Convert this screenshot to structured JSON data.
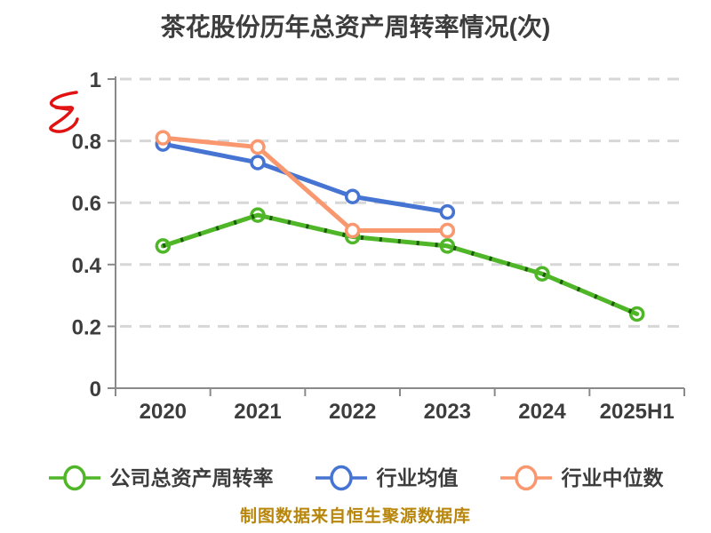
{
  "title": "茶花股份历年总资产周转率情况(次)",
  "watermark": "红色水印字符",
  "footer": {
    "source_note": "制图数据来自恒生聚源数据库"
  },
  "colors": {
    "title_text": "#3d3d3d",
    "tick_text": "#3d3d3d",
    "axis": "#8a8a8a",
    "gridline": "#d7d7d7",
    "company_green": "#4fb628",
    "company_green_dark": "#1c5c08",
    "industry_blue": "#4674d2",
    "median_orange": "#f9976e",
    "marker_fill": "#ffffff",
    "footer_gold": "#b8860b",
    "watermark_red": "#e01212"
  },
  "chart_data": {
    "type": "line",
    "title": "茶花股份历年总资产周转率情况(次)",
    "xlabel": "",
    "ylabel": "",
    "categories": [
      "2020",
      "2021",
      "2022",
      "2023",
      "2024",
      "2025H1"
    ],
    "series": [
      {
        "name": "公司总资产周转率",
        "color": "#4fb628",
        "line_over_marker": true,
        "dark_dashes": true,
        "values": [
          0.46,
          0.56,
          0.49,
          0.46,
          0.37,
          0.24
        ]
      },
      {
        "name": "行业均值",
        "color": "#4674d2",
        "line_over_marker": false,
        "dark_dashes": false,
        "values": [
          0.79,
          0.73,
          0.62,
          0.57,
          null,
          null
        ]
      },
      {
        "name": "行业中位数",
        "color": "#f9976e",
        "line_over_marker": false,
        "dark_dashes": false,
        "values": [
          0.81,
          0.78,
          0.51,
          0.51,
          null,
          null
        ]
      }
    ],
    "ylim": [
      0,
      1
    ],
    "yticks": [
      0,
      0.2,
      0.4,
      0.6,
      0.8,
      1
    ],
    "ytick_labels": [
      "0",
      "0.2",
      "0.4",
      "0.6",
      "0.8",
      "1"
    ],
    "grid": "horizontal dashed",
    "legend_position": "bottom"
  }
}
